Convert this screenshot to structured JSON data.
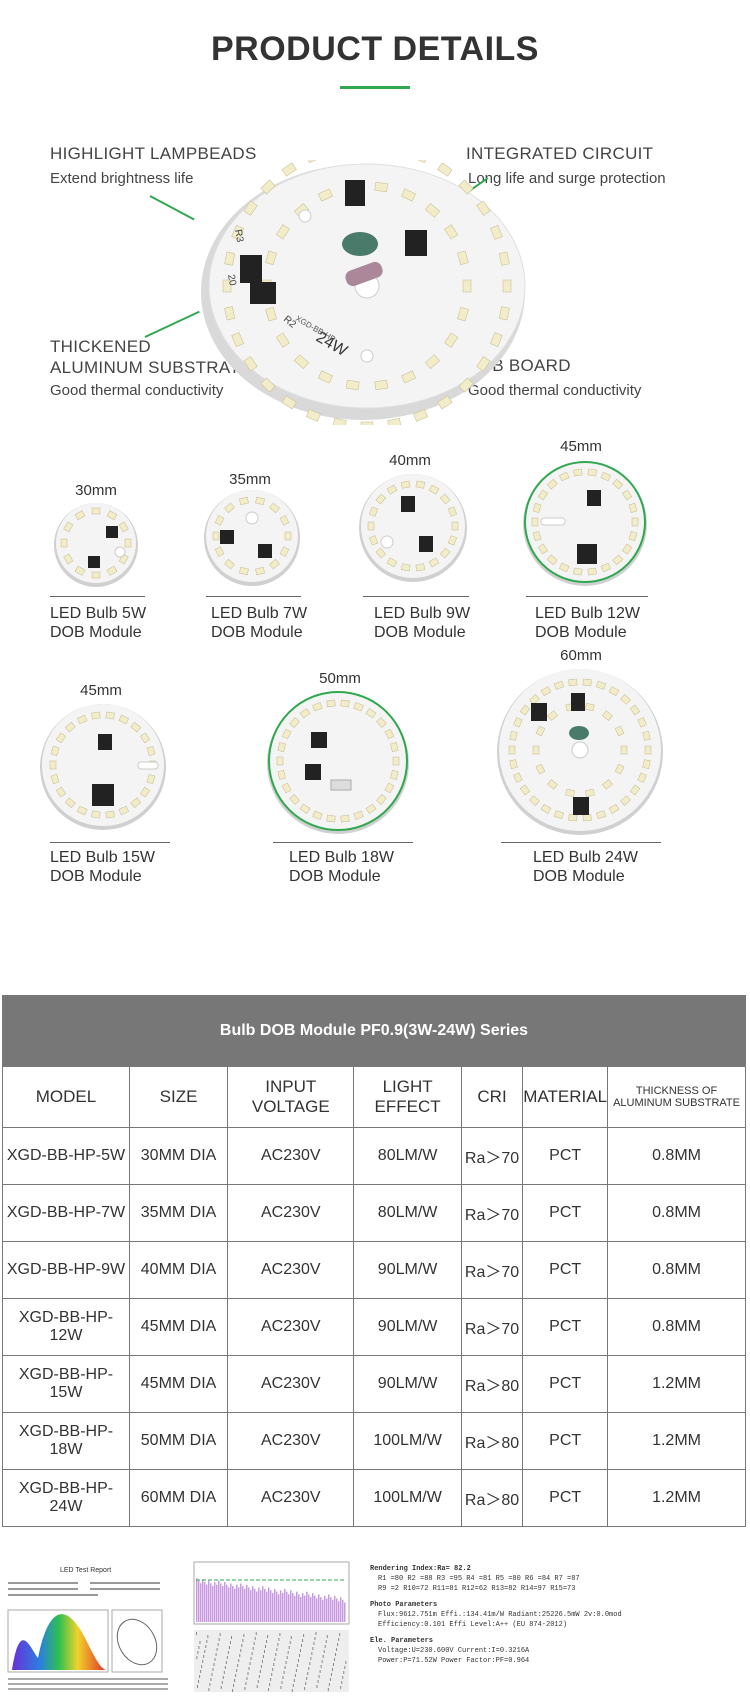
{
  "header": {
    "title": "PRODUCT DETAILS"
  },
  "features": [
    {
      "title": "HIGHLIGHT LAMPBEADS",
      "subtitle": "Extend brightness life"
    },
    {
      "title": "INTEGRATED CIRCUIT",
      "subtitle": "Long life and surge protection"
    },
    {
      "title_line1": "THICKENED",
      "title_line2": "ALUMINUM SUBSTRATE",
      "subtitle": "Good thermal conductivity"
    },
    {
      "title": "PCB BOARD",
      "subtitle": "Good thermal conductivity"
    }
  ],
  "main_pcb": {
    "labels": [
      "24W",
      "XGD-BB-HP",
      "R3",
      "R2",
      "20"
    ]
  },
  "modules_row1": [
    {
      "size": "30mm",
      "line1": "LED Bulb 5W",
      "line2": "DOB Module"
    },
    {
      "size": "35mm",
      "line1": "LED Bulb 7W",
      "line2": "DOB Module"
    },
    {
      "size": "40mm",
      "line1": "LED Bulb 9W",
      "line2": "DOB Module"
    },
    {
      "size": "45mm",
      "line1": "LED Bulb 12W",
      "line2": "DOB Module"
    }
  ],
  "modules_row2": [
    {
      "size": "45mm",
      "line1": "LED Bulb 15W",
      "line2": "DOB Module"
    },
    {
      "size": "50mm",
      "line1": "LED Bulb 18W",
      "line2": "DOB Module"
    },
    {
      "size": "60mm",
      "line1": "LED Bulb 24W",
      "line2": "DOB Module"
    }
  ],
  "table": {
    "banner": "Bulb DOB Module PF0.9(3W-24W) Series",
    "headers": [
      "MODEL",
      "SIZE",
      "INPUT VOLTAGE",
      "LIGHT EFFECT",
      "CRI",
      "MATERIAL",
      "THICKNESS OF ALUMINUM SUBSTRATE"
    ],
    "rows": [
      [
        "XGD-BB-HP-5W",
        "30MM DIA",
        "AC230V",
        "80LM/W",
        "Ra＞70",
        "PCT",
        "0.8MM"
      ],
      [
        "XGD-BB-HP-7W",
        "35MM DIA",
        "AC230V",
        "80LM/W",
        "Ra＞70",
        "PCT",
        "0.8MM"
      ],
      [
        "XGD-BB-HP-9W",
        "40MM DIA",
        "AC230V",
        "90LM/W",
        "Ra＞70",
        "PCT",
        "0.8MM"
      ],
      [
        "XGD-BB-HP-12W",
        "45MM DIA",
        "AC230V",
        "90LM/W",
        "Ra＞70",
        "PCT",
        "0.8MM"
      ],
      [
        "XGD-BB-HP-15W",
        "45MM DIA",
        "AC230V",
        "90LM/W",
        "Ra＞80",
        "PCT",
        "1.2MM"
      ],
      [
        "XGD-BB-HP-18W",
        "50MM DIA",
        "AC230V",
        "100LM/W",
        "Ra＞80",
        "PCT",
        "1.2MM"
      ],
      [
        "XGD-BB-HP-24W",
        "60MM DIA",
        "AC230V",
        "100LM/W",
        "Ra＞80",
        "PCT",
        "1.2MM"
      ]
    ]
  },
  "report": {
    "title": "LED Test Report",
    "rendering": "Rendering Index:Ra= 82.2",
    "r_values_1": "R1 =80   R2 =88   R3 =95   R4 =81   R5 =80   R6 =84   R7 =87",
    "r_values_2": "R9 =2    R10=72   R11=81   R12=62   R13=82   R14=97   R15=73",
    "photo_title": "Photo Parameters",
    "photo_1": "Flux:9612.751m    Effi.:134.41m/W     Radiant:25226.5mW   2v:0.0mod",
    "photo_2": "Efficiency:0.101              Effi Level:A++ (EU 874-2012)",
    "ele_title": "Ele. Parameters",
    "ele_1": "Voltage:U=230.600V                           Current:I=0.3216A",
    "ele_2": "Power:P=71.52W                                Power Factor:PF=0.964"
  },
  "colors": {
    "accent": "#2fa84f",
    "banner": "#777777",
    "pcb": "#f2f2f2",
    "led": "#f3ecc8"
  }
}
